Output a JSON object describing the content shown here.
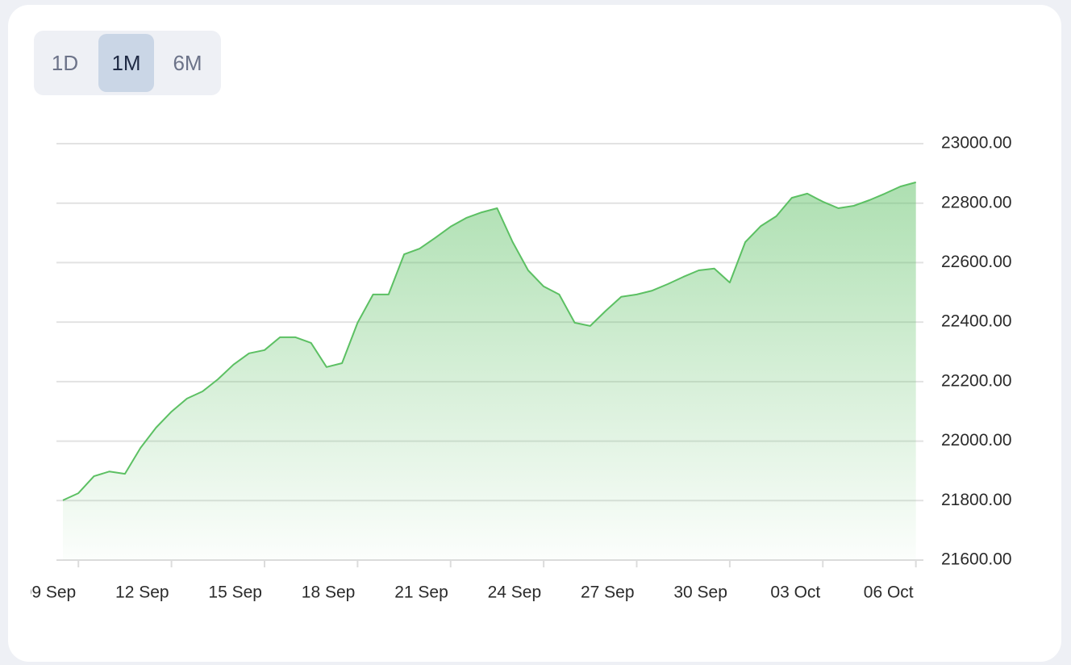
{
  "time_range_buttons": [
    "1D",
    "1M",
    "6M"
  ],
  "chart_data": {
    "type": "area",
    "categories": [
      null,
      "09 Sep",
      null,
      null,
      null,
      null,
      null,
      "12 Sep",
      null,
      null,
      null,
      null,
      null,
      "15 Sep",
      null,
      null,
      null,
      null,
      null,
      "18 Sep",
      null,
      null,
      null,
      null,
      null,
      "21 Sep",
      null,
      null,
      null,
      null,
      null,
      "24 Sep",
      null,
      null,
      null,
      null,
      null,
      "27 Sep",
      null,
      null,
      null,
      null,
      null,
      "30 Sep",
      null,
      null,
      null,
      null,
      null,
      "03 Oct",
      null,
      null,
      null,
      null,
      null,
      "06 Oct"
    ],
    "values": [
      21801,
      21825,
      21882,
      21898,
      21890,
      21977,
      22045,
      22099,
      22143,
      22167,
      22208,
      22257,
      22295,
      22306,
      22349,
      22349,
      22330,
      22249,
      22262,
      22398,
      22493,
      22493,
      22628,
      22647,
      22683,
      22721,
      22750,
      22769,
      22783,
      22669,
      22574,
      22520,
      22493,
      22398,
      22387,
      22438,
      22485,
      22493,
      22506,
      22528,
      22552,
      22574,
      22580,
      22533,
      22669,
      22723,
      22756,
      22818,
      22832,
      22805,
      22783,
      22791,
      22810,
      22832,
      22856,
      22870
    ],
    "color": "#5cc063",
    "ylim": [
      21600,
      23000
    ],
    "yticks": [
      {
        "value": 21600,
        "label": "21600.00"
      },
      {
        "value": 21800,
        "label": "21800.00"
      },
      {
        "value": 22000,
        "label": "22000.00"
      },
      {
        "value": 22200,
        "label": "22200.00"
      },
      {
        "value": 22400,
        "label": "22400.00"
      },
      {
        "value": 22600,
        "label": "22600.00"
      },
      {
        "value": 22800,
        "label": "22800.00"
      },
      {
        "value": 23000,
        "label": "23000.00"
      }
    ],
    "grid": true
  }
}
